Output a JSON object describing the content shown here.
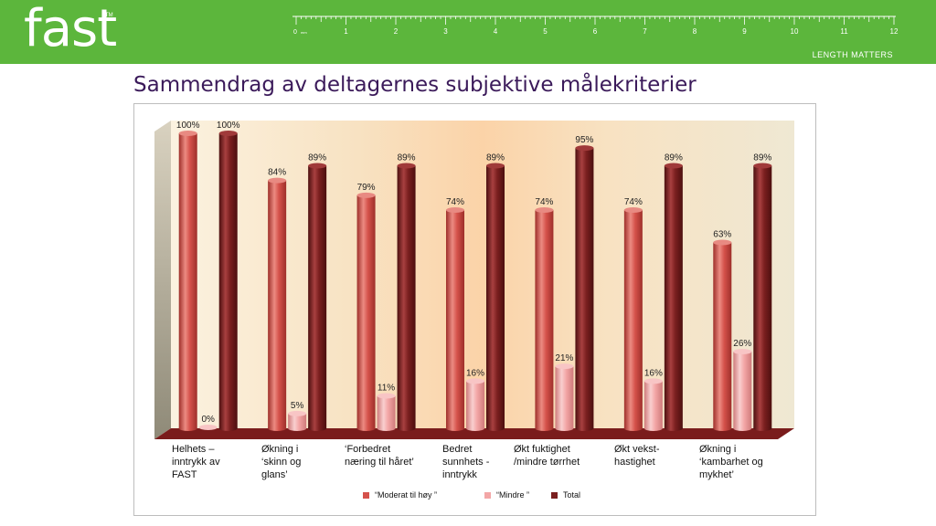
{
  "header": {
    "logo": "fast",
    "logo_tm": "TM",
    "ruler_zero": "0",
    "ruler_unit": "mm",
    "ruler_numbers": [
      "1",
      "2",
      "3",
      "4",
      "5",
      "6",
      "7",
      "8",
      "9",
      "10",
      "11",
      "12"
    ],
    "tagline": "LENGTH MATTERS"
  },
  "title": "Sammendrag av deltagernes subjektive målekriterier",
  "colors": {
    "header": "#5cb63c",
    "title": "#3b1a5a",
    "moderat": "#d5524b",
    "mindre": "#f3a6a6",
    "total": "#7a1f1f"
  },
  "chart_data": {
    "type": "bar",
    "title": "",
    "categories": [
      "Helhets –\ninntrykk av\nFAST",
      "Økning   i\n‘skinn og\nglans’",
      "‘Forbedret\nnæring til håret’",
      "Bedret\nsunnhets -\ninntrykk",
      "Økt fuktighet\n/mindre tørrhet",
      "Økt vekst-\nhastighet",
      "Økning i\n‘kambarhet og\nmykhet’"
    ],
    "series": [
      {
        "name": "“Moderat til høy ”",
        "values": [
          100,
          84,
          79,
          74,
          74,
          74,
          63
        ],
        "labels": [
          "100%",
          "84%",
          "79%",
          "74%",
          "74%",
          "74%",
          "63%"
        ]
      },
      {
        "name": "“Mindre ”",
        "values": [
          0,
          5,
          11,
          16,
          21,
          16,
          26
        ],
        "labels": [
          "0%",
          "5%",
          "11%",
          "16%",
          "21%",
          "16%",
          "26%"
        ]
      },
      {
        "name": "Total",
        "values": [
          100,
          89,
          89,
          89,
          95,
          89,
          89
        ],
        "labels": [
          "100%",
          "89%",
          "89%",
          "89%",
          "95%",
          "89%",
          "89%"
        ]
      }
    ],
    "ylim": [
      0,
      100
    ],
    "legend_position": "bottom"
  }
}
